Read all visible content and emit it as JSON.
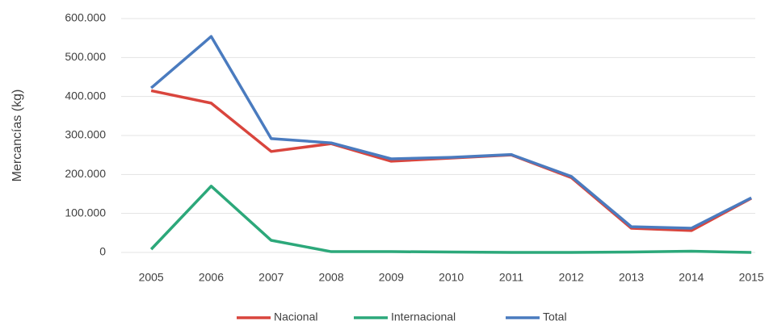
{
  "chart_data": {
    "type": "line",
    "y_label": "Mercancías (kg)",
    "categories": [
      "2005",
      "2006",
      "2007",
      "2008",
      "2009",
      "2010",
      "2011",
      "2012",
      "2013",
      "2014",
      "2015"
    ],
    "series": [
      {
        "name": "Nacional",
        "color": "#d9453d",
        "values": [
          415000,
          383000,
          259000,
          279000,
          234000,
          242000,
          250000,
          192000,
          62000,
          56000,
          139000
        ]
      },
      {
        "name": "Internacional",
        "color": "#2ca87a",
        "values": [
          8000,
          170000,
          31000,
          2000,
          2000,
          1000,
          0,
          0,
          1000,
          3000,
          0
        ]
      },
      {
        "name": "Total",
        "color": "#4a7bbf",
        "values": [
          422000,
          554000,
          292000,
          281000,
          240000,
          244000,
          251000,
          195000,
          66000,
          62000,
          140000
        ]
      }
    ],
    "ylim": [
      0,
      600000
    ],
    "yticks": [
      0,
      {
        "value": 100000,
        "label": "100.000"
      },
      {
        "value": 200000,
        "label": "200.000"
      },
      {
        "value": 300000,
        "label": "300.000"
      },
      {
        "value": 400000,
        "label": "400.000"
      },
      {
        "value": 500000,
        "label": "500.000"
      },
      {
        "value": 600000,
        "label": "600.000"
      }
    ],
    "grid": true,
    "legend": "bottom"
  }
}
